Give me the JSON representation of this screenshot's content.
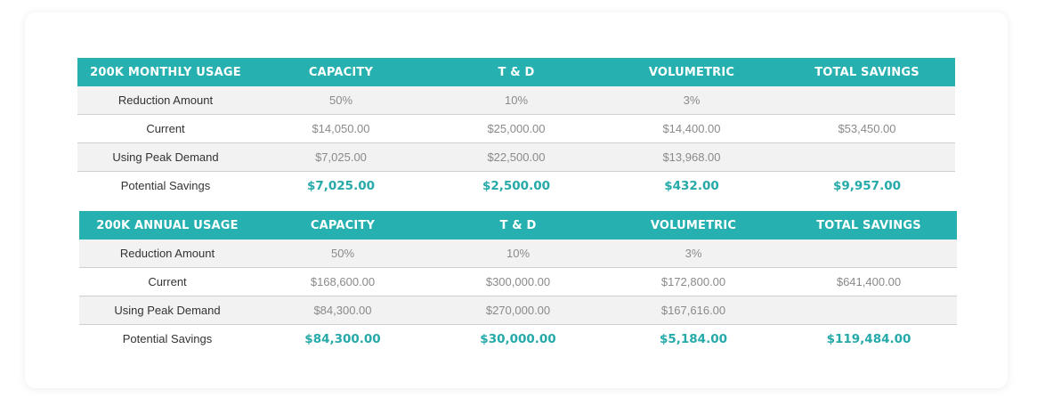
{
  "tables": [
    {
      "headers": [
        "200K MONTHLY USAGE",
        "CAPACITY",
        "T & D",
        "VOLUMETRIC",
        "TOTAL SAVINGS"
      ],
      "rows": [
        {
          "label": "Reduction Amount",
          "values": [
            "50%",
            "10%",
            "3%",
            ""
          ]
        },
        {
          "label": "Current",
          "values": [
            "$14,050.00",
            "$25,000.00",
            "$14,400.00",
            "$53,450.00"
          ]
        },
        {
          "label": "Using Peak Demand",
          "values": [
            "$7,025.00",
            "$22,500.00",
            "$13,968.00",
            ""
          ]
        },
        {
          "label": "Potential Savings",
          "values": [
            "$7,025.00",
            "$2,500.00",
            "$432.00",
            "$9,957.00"
          ]
        }
      ]
    },
    {
      "headers": [
        "200K ANNUAL USAGE",
        "CAPACITY",
        "T & D",
        "VOLUMETRIC",
        "TOTAL SAVINGS"
      ],
      "rows": [
        {
          "label": "Reduction Amount",
          "values": [
            "50%",
            "10%",
            "3%",
            ""
          ]
        },
        {
          "label": "Current",
          "values": [
            "$168,600.00",
            "$300,000.00",
            "$172,800.00",
            "$641,400.00"
          ]
        },
        {
          "label": "Using Peak Demand",
          "values": [
            "$84,300.00",
            "$270,000.00",
            "$167,616.00",
            ""
          ]
        },
        {
          "label": "Potential Savings",
          "values": [
            "$84,300.00",
            "$30,000.00",
            "$5,184.00",
            "$119,484.00"
          ]
        }
      ]
    }
  ]
}
